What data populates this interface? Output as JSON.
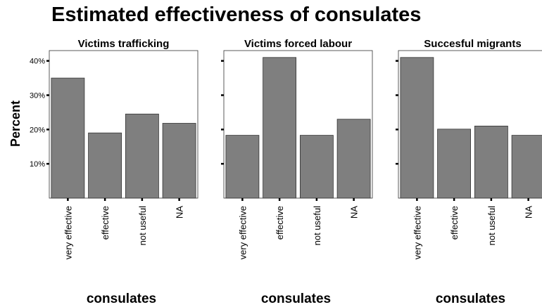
{
  "chart_data": {
    "type": "bar",
    "title": "Estimated effectiveness of consulates",
    "ylabel": "Percent",
    "ylim": [
      0,
      43
    ],
    "yticks": [
      10,
      20,
      30,
      40
    ],
    "ytick_labels": [
      "10%",
      "20%",
      "30%",
      "40%"
    ],
    "grid": false,
    "bar_color": "#7f7f7f",
    "categories": [
      "very effective",
      "effective",
      "not useful",
      "NA"
    ],
    "panels": [
      {
        "name": "Victims trafficking",
        "xlabel": "consulates",
        "values": [
          35,
          19,
          24.5,
          21.8
        ]
      },
      {
        "name": "Victims forced labour",
        "xlabel": "consulates",
        "values": [
          18.3,
          41,
          18.3,
          23
        ]
      },
      {
        "name": "Succesful migrants",
        "xlabel": "consulates",
        "values": [
          41,
          20.1,
          21,
          18.3
        ]
      }
    ]
  }
}
